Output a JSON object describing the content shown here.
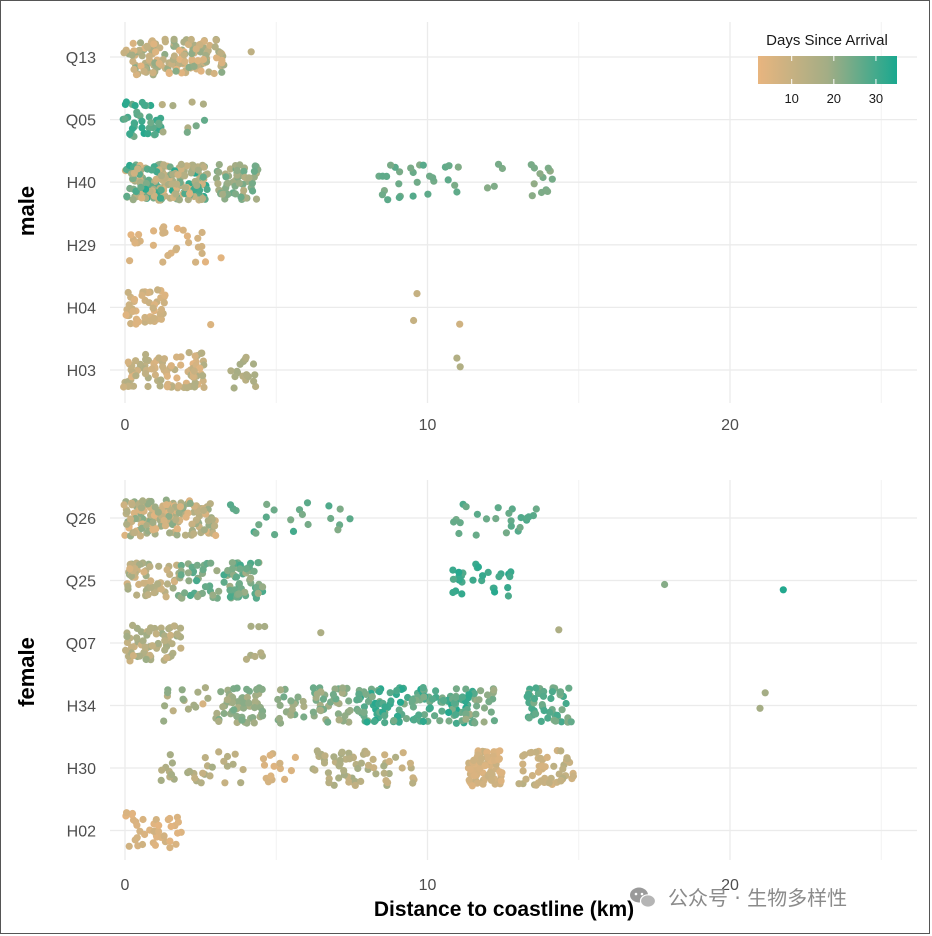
{
  "chart_data": {
    "type": "scatter",
    "style": "jitter strip plot, faceted by sex",
    "xlabel": "Distance to coastline (km)",
    "xlim": [
      -0.5,
      26
    ],
    "x_ticks": [
      0,
      10,
      20
    ],
    "color_legend": {
      "title": "Days Since Arrival",
      "ticks": [
        10,
        20,
        30
      ],
      "range": [
        2,
        35
      ],
      "low_color": "#e8b57f",
      "mid_color": "#a3ad85",
      "high_color": "#1aa88f"
    },
    "facets": [
      {
        "label": "male",
        "categories": [
          "Q13",
          "Q05",
          "H40",
          "H29",
          "H04",
          "H03"
        ],
        "clusters": [
          {
            "cat": "Q13",
            "x": [
              0,
              3.3
            ],
            "n": 150,
            "days": [
              3,
              22
            ]
          },
          {
            "cat": "Q13",
            "x": [
              4.2,
              4.2
            ],
            "n": 1,
            "days": [
              12,
              12
            ]
          },
          {
            "cat": "Q05",
            "x": [
              0,
              1.2
            ],
            "n": 40,
            "days": [
              24,
              34
            ]
          },
          {
            "cat": "Q05",
            "x": [
              1.2,
              3.2
            ],
            "n": 9,
            "days": [
              12,
              28
            ]
          },
          {
            "cat": "H40",
            "x": [
              0,
              2.7
            ],
            "n": 200,
            "days": [
              5,
              34
            ]
          },
          {
            "cat": "H40",
            "x": [
              3.0,
              4.4
            ],
            "n": 60,
            "days": [
              14,
              26
            ]
          },
          {
            "cat": "H40",
            "x": [
              8.3,
              11.0
            ],
            "n": 28,
            "days": [
              22,
              28
            ]
          },
          {
            "cat": "H40",
            "x": [
              11.9,
              12.5
            ],
            "n": 4,
            "days": [
              20,
              24
            ]
          },
          {
            "cat": "H40",
            "x": [
              13.3,
              14.2
            ],
            "n": 14,
            "days": [
              20,
              26
            ]
          },
          {
            "cat": "H29",
            "x": [
              0,
              3.3
            ],
            "n": 30,
            "days": [
              3,
              8
            ]
          },
          {
            "cat": "H04",
            "x": [
              0,
              1.3
            ],
            "n": 45,
            "days": [
              4,
              10
            ]
          },
          {
            "cat": "H04",
            "x": [
              2.9,
              2.9
            ],
            "n": 1,
            "days": [
              5,
              5
            ]
          },
          {
            "cat": "H04",
            "x": [
              9.6,
              9.6
            ],
            "n": 2,
            "days": [
              10,
              12
            ]
          },
          {
            "cat": "H04",
            "x": [
              11.0,
              11.0
            ],
            "n": 1,
            "days": [
              8,
              8
            ]
          },
          {
            "cat": "H03",
            "x": [
              0,
              2.7
            ],
            "n": 100,
            "days": [
              3,
              16
            ]
          },
          {
            "cat": "H03",
            "x": [
              3.4,
              4.4
            ],
            "n": 18,
            "days": [
              13,
              18
            ]
          },
          {
            "cat": "H03",
            "x": [
              10.9,
              11.2
            ],
            "n": 2,
            "days": [
              14,
              16
            ]
          }
        ]
      },
      {
        "label": "female",
        "categories": [
          "Q26",
          "Q25",
          "Q07",
          "H34",
          "H30",
          "H02"
        ],
        "clusters": [
          {
            "cat": "Q26",
            "x": [
              0,
              3.0
            ],
            "n": 160,
            "days": [
              3,
              22
            ]
          },
          {
            "cat": "Q26",
            "x": [
              3.3,
              7.5
            ],
            "n": 22,
            "days": [
              22,
              30
            ]
          },
          {
            "cat": "Q26",
            "x": [
              10.8,
              13.6
            ],
            "n": 24,
            "days": [
              24,
              30
            ]
          },
          {
            "cat": "Q25",
            "x": [
              0,
              1.8
            ],
            "n": 60,
            "days": [
              6,
              20
            ]
          },
          {
            "cat": "Q25",
            "x": [
              1.8,
              4.6
            ],
            "n": 90,
            "days": [
              18,
              30
            ]
          },
          {
            "cat": "Q25",
            "x": [
              10.8,
              12.8
            ],
            "n": 28,
            "days": [
              28,
              34
            ]
          },
          {
            "cat": "Q25",
            "x": [
              17.9,
              17.9
            ],
            "n": 1,
            "days": [
              22,
              22
            ]
          },
          {
            "cat": "Q25",
            "x": [
              21.8,
              21.8
            ],
            "n": 1,
            "days": [
              34,
              34
            ]
          },
          {
            "cat": "Q07",
            "x": [
              0,
              1.9
            ],
            "n": 70,
            "days": [
              8,
              20
            ]
          },
          {
            "cat": "Q07",
            "x": [
              4.0,
              4.6
            ],
            "n": 8,
            "days": [
              14,
              18
            ]
          },
          {
            "cat": "Q07",
            "x": [
              6.5,
              6.5
            ],
            "n": 1,
            "days": [
              16,
              16
            ]
          },
          {
            "cat": "Q07",
            "x": [
              14.3,
              14.3
            ],
            "n": 1,
            "days": [
              16,
              16
            ]
          },
          {
            "cat": "H34",
            "x": [
              1.2,
              2.9
            ],
            "n": 16,
            "days": [
              6,
              22
            ]
          },
          {
            "cat": "H34",
            "x": [
              3.0,
              4.6
            ],
            "n": 60,
            "days": [
              16,
              24
            ]
          },
          {
            "cat": "H34",
            "x": [
              5.0,
              7.6
            ],
            "n": 60,
            "days": [
              16,
              26
            ]
          },
          {
            "cat": "H34",
            "x": [
              7.7,
              11.6
            ],
            "n": 150,
            "days": [
              22,
              34
            ]
          },
          {
            "cat": "H34",
            "x": [
              11.0,
              12.2
            ],
            "n": 20,
            "days": [
              18,
              26
            ]
          },
          {
            "cat": "H34",
            "x": [
              13.3,
              14.8
            ],
            "n": 55,
            "days": [
              22,
              30
            ]
          },
          {
            "cat": "H34",
            "x": [
              20.8,
              21.3
            ],
            "n": 2,
            "days": [
              16,
              18
            ]
          },
          {
            "cat": "H30",
            "x": [
              1.1,
              4.0
            ],
            "n": 30,
            "days": [
              10,
              18
            ]
          },
          {
            "cat": "H30",
            "x": [
              4.5,
              5.7
            ],
            "n": 14,
            "days": [
              4,
              8
            ]
          },
          {
            "cat": "H30",
            "x": [
              6.2,
              7.8
            ],
            "n": 40,
            "days": [
              10,
              18
            ]
          },
          {
            "cat": "H30",
            "x": [
              7.9,
              10.1
            ],
            "n": 25,
            "days": [
              8,
              18
            ]
          },
          {
            "cat": "H30",
            "x": [
              11.4,
              12.5
            ],
            "n": 80,
            "days": [
              4,
              10
            ]
          },
          {
            "cat": "H30",
            "x": [
              13.0,
              14.8
            ],
            "n": 55,
            "days": [
              6,
              14
            ]
          },
          {
            "cat": "H02",
            "x": [
              0,
              1.9
            ],
            "n": 40,
            "days": [
              3,
              8
            ]
          }
        ]
      }
    ]
  },
  "watermark": {
    "icon": "wechat-icon",
    "text": "公众号 · 生物多样性"
  }
}
